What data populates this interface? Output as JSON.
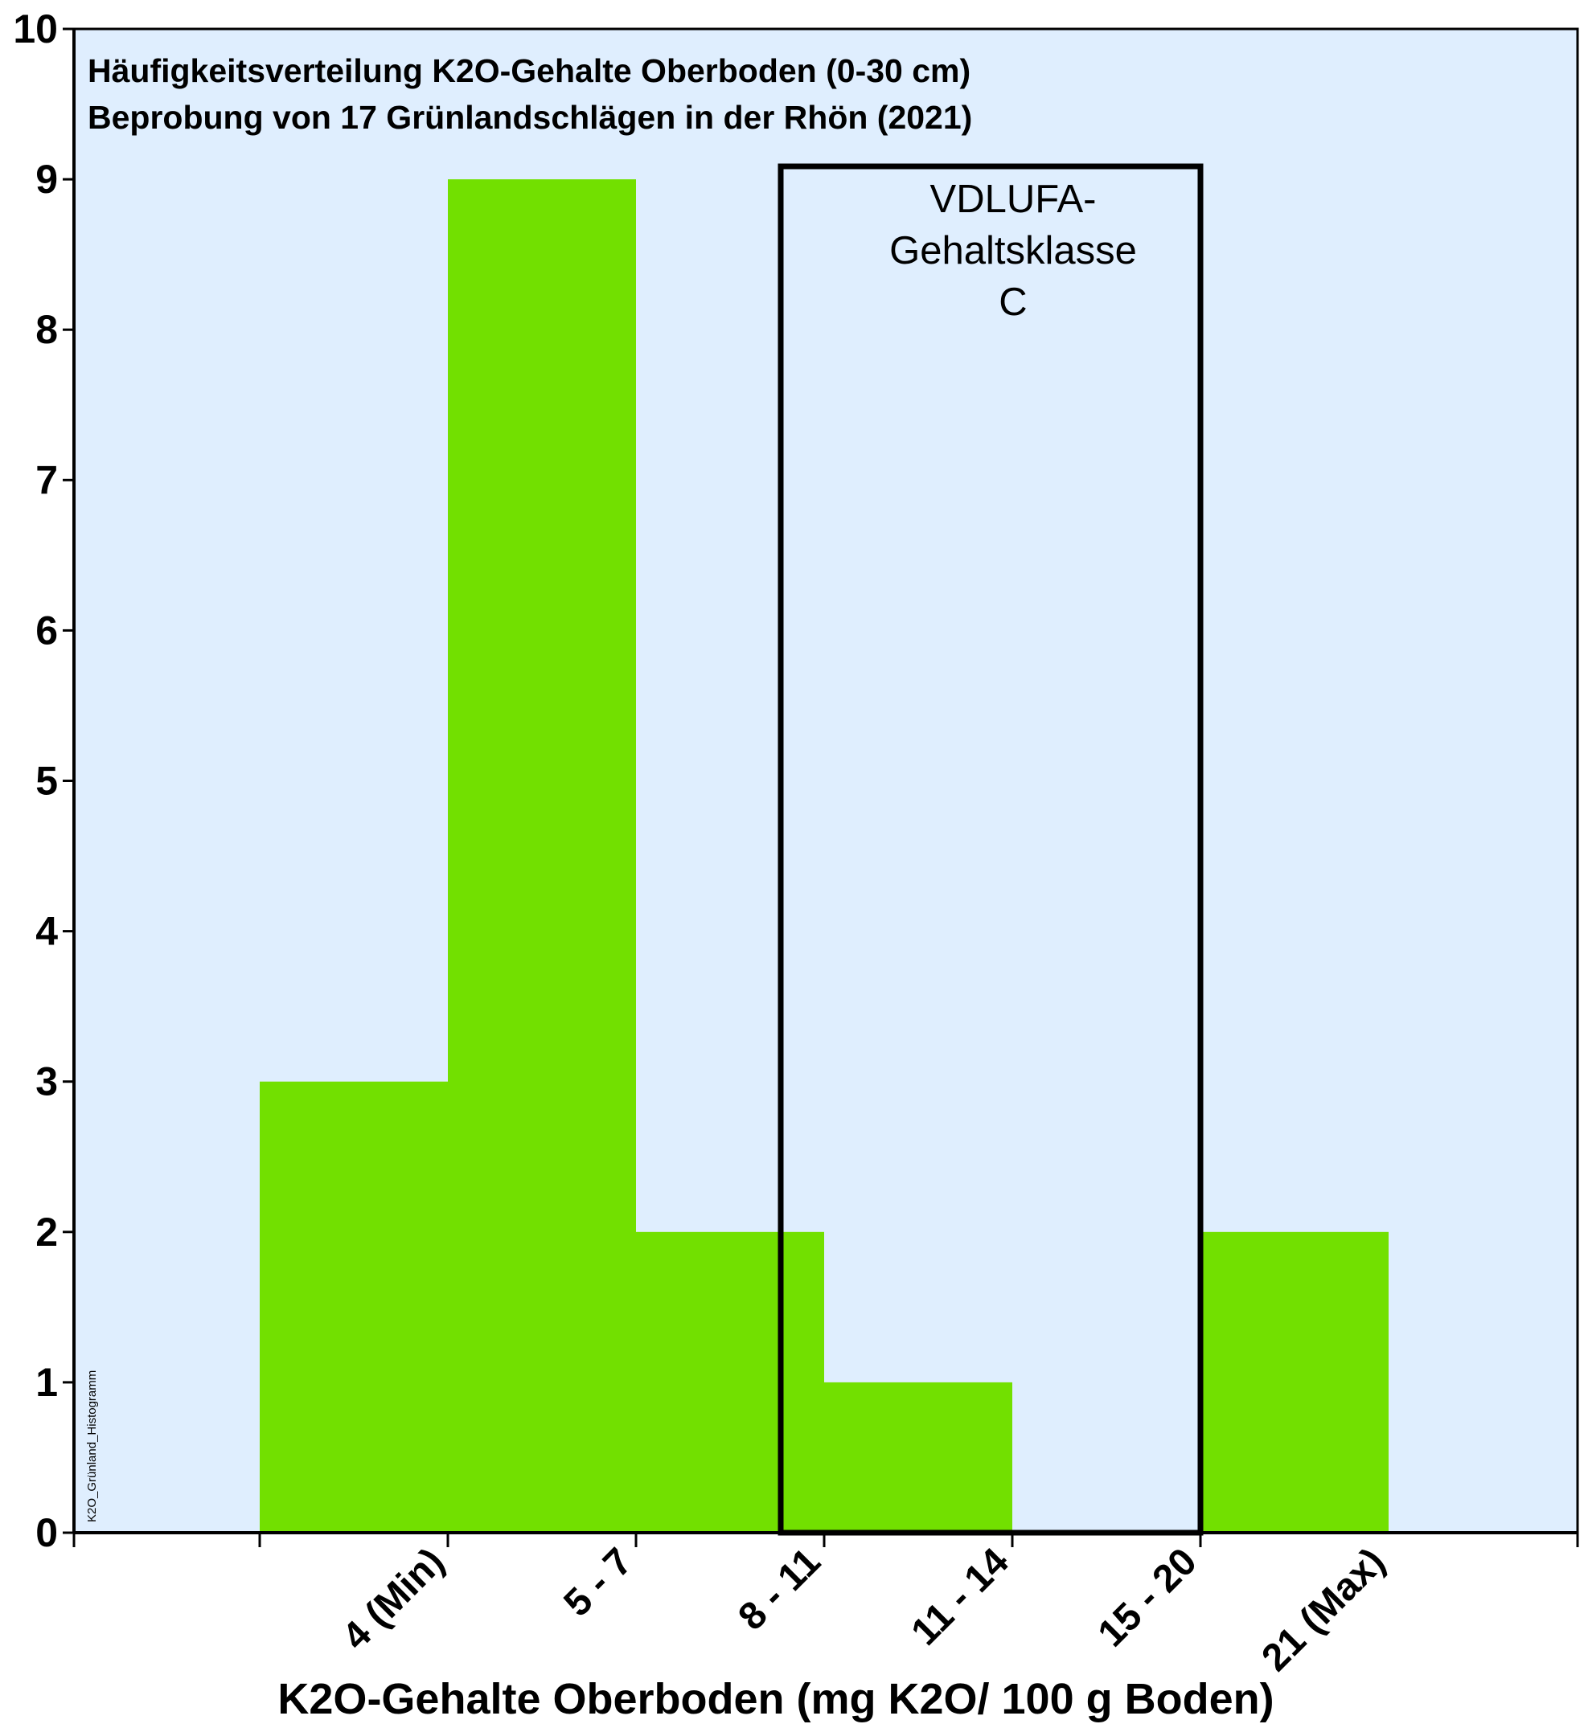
{
  "chart_data": {
    "type": "bar",
    "title_lines": [
      "Häufigkeitsverteilung K2O-Gehalte Oberboden (0-30 cm)",
      "Beprobung von 17 Grünlandschlägen in der Rhön (2021)"
    ],
    "xlabel": "K2O-Gehalte Oberboden (mg K2O/ 100 g Boden)",
    "ylabel": "",
    "categories": [
      "4 (Min)",
      "5 - 7",
      "8 - 11",
      "11 - 14",
      "15 - 20",
      "21 (Max)"
    ],
    "values": [
      3,
      9,
      2,
      1,
      0,
      2
    ],
    "ylim": [
      0,
      10
    ],
    "yticks": [
      "0",
      "1",
      "2",
      "3",
      "4",
      "5",
      "6",
      "7",
      "8",
      "9",
      "10"
    ],
    "grid": false,
    "legend": "none",
    "annotation": {
      "lines": [
        "VDLUFA-",
        "Gehaltsklasse",
        "C"
      ],
      "spans_categories": [
        "11 - 14",
        "15 - 20"
      ]
    },
    "side_note": "K2O_Grünland_Histogramm",
    "colors": {
      "bar": "#72e000",
      "plot_background": "#dfeefe",
      "frame": "#000000"
    }
  }
}
